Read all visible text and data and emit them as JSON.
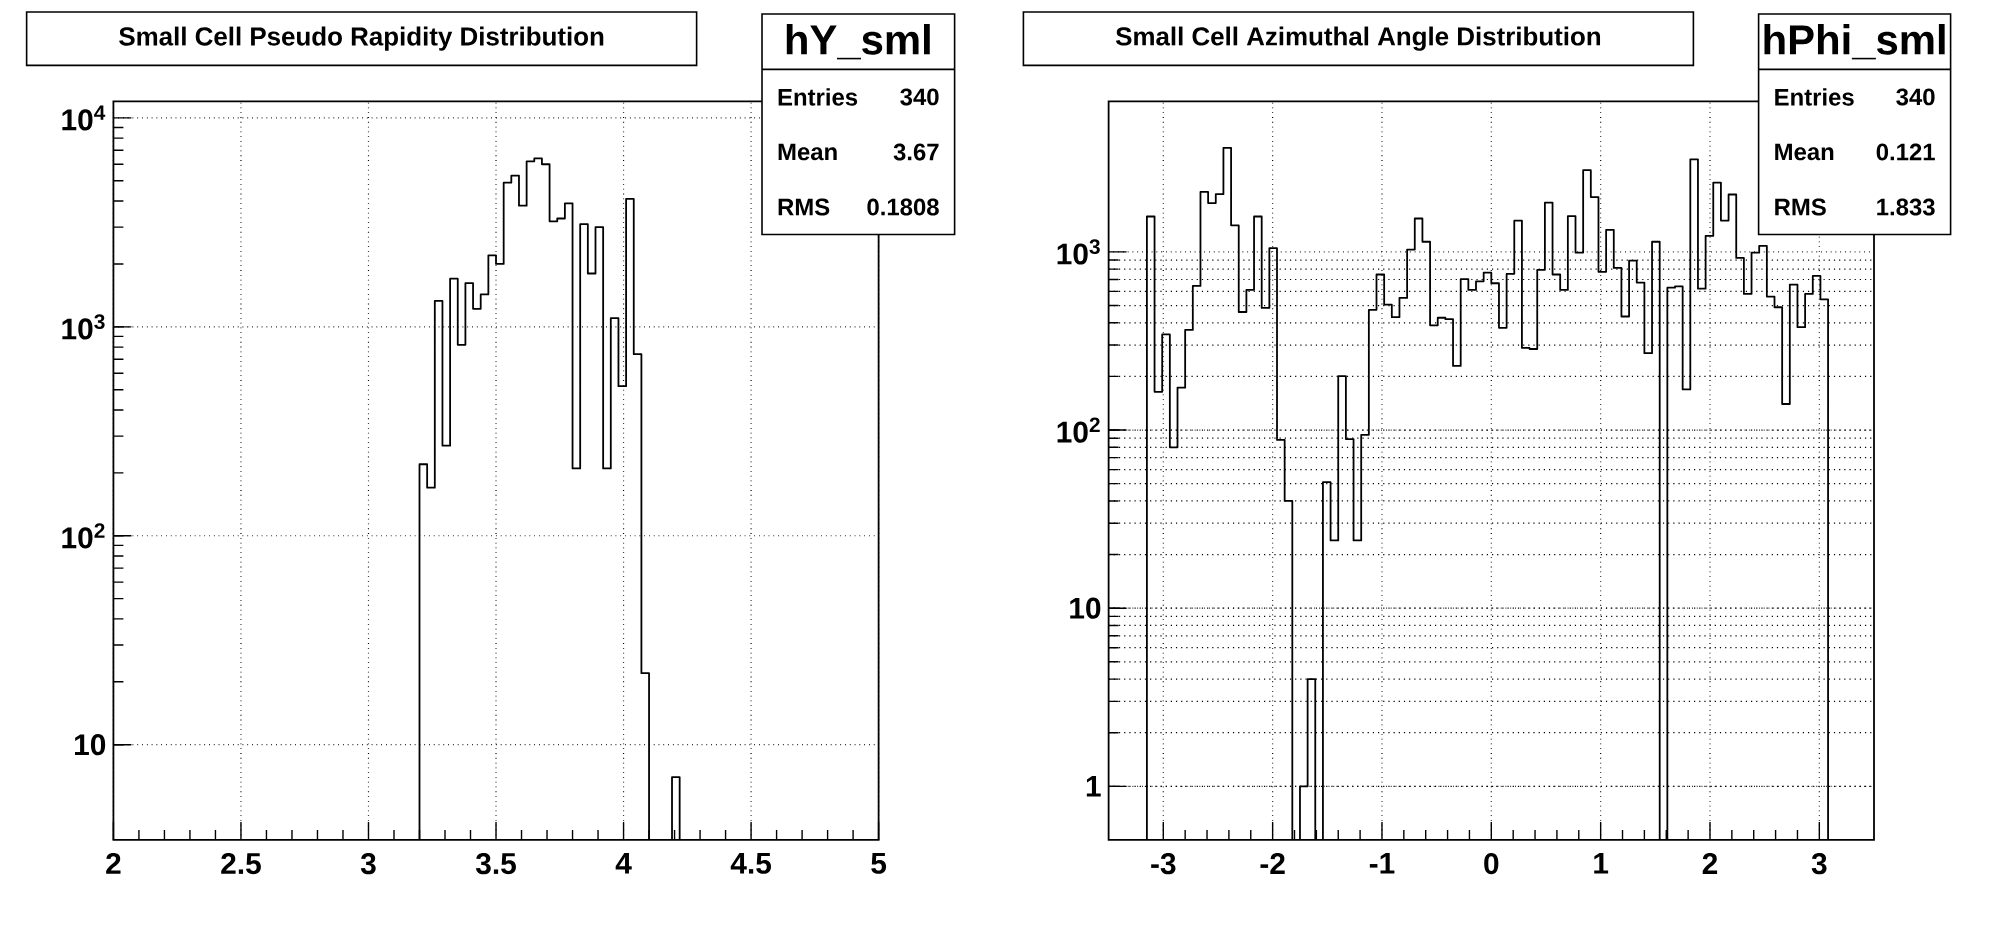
{
  "chart_data": [
    {
      "type": "histogram",
      "title": "Small Cell Pseudo Rapidity Distribution",
      "color": "#000000",
      "log": true,
      "grid": true,
      "annotations": [
        "hY_sml",
        "Entries",
        "340",
        "Mean",
        "3.67",
        "RMS",
        "0.1808"
      ],
      "xlim": [
        2,
        5
      ],
      "ylim": [
        3.5,
        12000
      ],
      "xticks": [
        2,
        2.5,
        3,
        3.5,
        4,
        4.5,
        5
      ],
      "yticks": [
        10,
        {
          "value": 100,
          "label": "10$^{2}$"
        },
        {
          "value": 1000,
          "label": "10$^{3}$"
        },
        {
          "value": 10000,
          "label": "10$^{4}$"
        }
      ],
      "bins": [
        3.2,
        3.23,
        3.26,
        3.29,
        3.32,
        3.35,
        3.38,
        3.41,
        3.44,
        3.47,
        3.5,
        3.53,
        3.56,
        3.59,
        3.62,
        3.65,
        3.68,
        3.71,
        3.74,
        3.77,
        3.8,
        3.83,
        3.86,
        3.89,
        3.92,
        3.95,
        3.98,
        4.01,
        4.04,
        4.07,
        4.1,
        4.13,
        4.16,
        4.19,
        4.22
      ],
      "values": [
        220,
        170,
        1330,
        270,
        1700,
        820,
        1620,
        1220,
        1430,
        2200,
        2000,
        4900,
        5300,
        3800,
        6200,
        6400,
        6000,
        3200,
        3300,
        3900,
        210,
        3100,
        1800,
        3000,
        210,
        1100,
        520,
        4100,
        740,
        22,
        null,
        null,
        null,
        7
      ]
    },
    {
      "type": "histogram",
      "title": "Small Cell Azimuthal Angle Distribution",
      "color": "#000000",
      "log": true,
      "grid": true,
      "annotations": [
        "hPhi_sml",
        "Entries",
        "340",
        "Mean",
        "0.121",
        "RMS",
        "1.833"
      ],
      "xlim": [
        -3.5,
        3.5
      ],
      "ylim": [
        0.5,
        7000
      ],
      "xticks": [
        -3,
        -2,
        -1,
        0,
        1,
        2,
        3
      ],
      "yticks": [
        1,
        10,
        {
          "value": 100,
          "label": "10$^{2}$"
        },
        {
          "value": 1000,
          "label": "10$^{3}$"
        }
      ],
      "bins": [
        -3.15,
        -3.08,
        -3.01,
        -2.94,
        -2.87,
        -2.8,
        -2.73,
        -2.66,
        -2.59,
        -2.52,
        -2.45,
        -2.38,
        -2.31,
        -2.24,
        -2.17,
        -2.1,
        -2.03,
        -1.96,
        -1.89,
        -1.82,
        -1.75,
        -1.68,
        -1.61,
        -1.54,
        -1.47,
        -1.4,
        -1.33,
        -1.26,
        -1.19,
        -1.12,
        -1.05,
        -0.98,
        -0.91,
        -0.84,
        -0.77,
        -0.7,
        -0.63,
        -0.56,
        -0.49,
        -0.42,
        -0.35,
        -0.28,
        -0.21,
        -0.14,
        -0.07,
        0,
        0.07,
        0.14,
        0.21,
        0.28,
        0.35,
        0.42,
        0.49,
        0.56,
        0.63,
        0.7,
        0.77,
        0.84,
        0.91,
        0.98,
        1.05,
        1.12,
        1.19,
        1.26,
        1.33,
        1.4,
        1.47,
        1.54,
        1.61,
        1.68,
        1.75,
        1.82,
        1.89,
        1.96,
        2.03,
        2.1,
        2.17,
        2.24,
        2.31,
        2.38,
        2.45,
        2.52,
        2.59,
        2.66,
        2.73,
        2.8,
        2.87,
        2.94,
        3.01,
        3.08
      ],
      "values": [
        1580,
        164,
        344,
        80,
        173,
        365,
        644,
        2170,
        1880,
        2110,
        3840,
        1410,
        460,
        612,
        1580,
        485,
        1050,
        88,
        40,
        null,
        1,
        4,
        null,
        51,
        24,
        201,
        89,
        24,
        94,
        473,
        747,
        506,
        430,
        552,
        1030,
        1540,
        1140,
        387,
        427,
        419,
        229,
        703,
        612,
        684,
        766,
        667,
        375,
        753,
        1500,
        289,
        285,
        793,
        1890,
        747,
        612,
        1590,
        992,
        2880,
        2030,
        773,
        1330,
        813,
        434,
        894,
        673,
        270,
        1140,
        null,
        630,
        640,
        169,
        3310,
        622,
        1230,
        2450,
        1500,
        2100,
        925,
        581,
        990,
        1080,
        561,
        489,
        140,
        656,
        378,
        581,
        733,
        542
      ]
    }
  ]
}
